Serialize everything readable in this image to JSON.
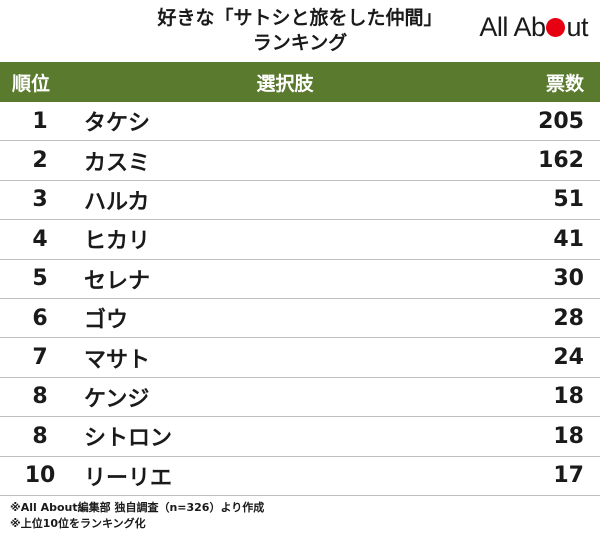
{
  "header": {
    "title_line1": "好きな「サトシと旅をした仲間」",
    "title_line2": "ランキング",
    "logo_text_before": "All Ab",
    "logo_text_after": "ut",
    "brand_color": "#e60012"
  },
  "table": {
    "header_color": "#5a7a2e",
    "columns": [
      "順位",
      "選択肢",
      "票数"
    ],
    "rows": [
      {
        "rank": "1",
        "name": "タケシ",
        "votes": "205"
      },
      {
        "rank": "2",
        "name": "カスミ",
        "votes": "162"
      },
      {
        "rank": "3",
        "name": "ハルカ",
        "votes": "51"
      },
      {
        "rank": "4",
        "name": "ヒカリ",
        "votes": "41"
      },
      {
        "rank": "5",
        "name": "セレナ",
        "votes": "30"
      },
      {
        "rank": "6",
        "name": "ゴウ",
        "votes": "28"
      },
      {
        "rank": "7",
        "name": "マサト",
        "votes": "24"
      },
      {
        "rank": "8",
        "name": "ケンジ",
        "votes": "18"
      },
      {
        "rank": "8",
        "name": "シトロン",
        "votes": "18"
      },
      {
        "rank": "10",
        "name": "リーリエ",
        "votes": "17"
      }
    ]
  },
  "notes": [
    "※All About編集部 独自調査（n=326）より作成",
    "※上位10位をランキング化"
  ]
}
